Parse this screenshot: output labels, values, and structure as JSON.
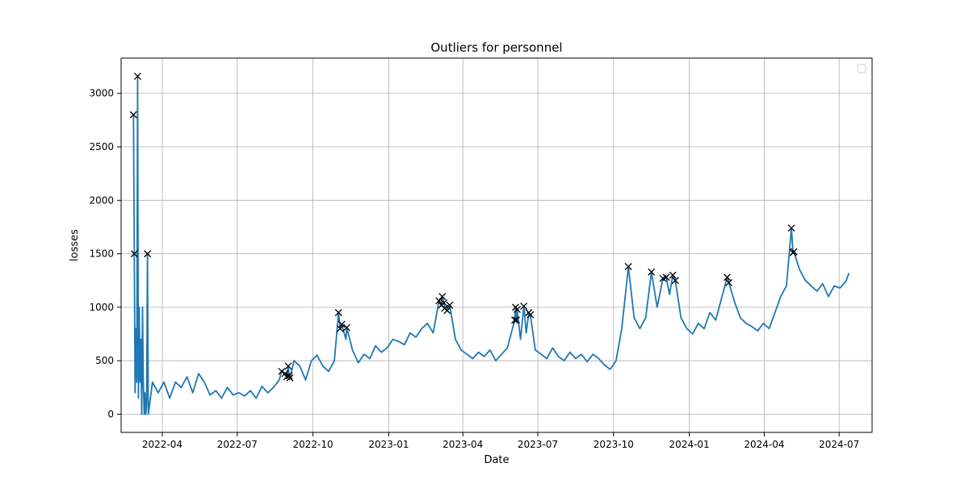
{
  "chart_data": {
    "type": "line",
    "title": "Outliers for personnel",
    "xlabel": "Date",
    "ylabel": "losses",
    "xlim": [
      "2022-02-10",
      "2024-08-10"
    ],
    "ylim": [
      -170,
      3330
    ],
    "x_ticks": [
      "2022-04",
      "2022-07",
      "2022-10",
      "2023-01",
      "2023-04",
      "2023-07",
      "2023-10",
      "2024-01",
      "2024-04",
      "2024-07"
    ],
    "y_ticks": [
      0,
      500,
      1000,
      1500,
      2000,
      2500,
      3000
    ],
    "grid": true,
    "legend_position": "top-right",
    "series": [
      {
        "color": "#1f77b4",
        "points": [
          [
            "2022-02-25",
            2800
          ],
          [
            "2022-02-26",
            1500
          ],
          [
            "2022-02-27",
            200
          ],
          [
            "2022-02-28",
            800
          ],
          [
            "2022-03-01",
            300
          ],
          [
            "2022-03-02",
            3160
          ],
          [
            "2022-03-03",
            150
          ],
          [
            "2022-03-04",
            1000
          ],
          [
            "2022-03-05",
            300
          ],
          [
            "2022-03-06",
            700
          ],
          [
            "2022-03-07",
            0
          ],
          [
            "2022-03-08",
            1000
          ],
          [
            "2022-03-09",
            300
          ],
          [
            "2022-03-10",
            0
          ],
          [
            "2022-03-11",
            200
          ],
          [
            "2022-03-12",
            0
          ],
          [
            "2022-03-13",
            100
          ],
          [
            "2022-03-14",
            1500
          ],
          [
            "2022-03-15",
            0
          ],
          [
            "2022-03-20",
            300
          ],
          [
            "2022-03-27",
            200
          ],
          [
            "2022-04-03",
            300
          ],
          [
            "2022-04-10",
            150
          ],
          [
            "2022-04-17",
            300
          ],
          [
            "2022-04-24",
            250
          ],
          [
            "2022-05-01",
            350
          ],
          [
            "2022-05-08",
            200
          ],
          [
            "2022-05-15",
            380
          ],
          [
            "2022-05-22",
            300
          ],
          [
            "2022-05-29",
            180
          ],
          [
            "2022-06-05",
            220
          ],
          [
            "2022-06-12",
            150
          ],
          [
            "2022-06-19",
            250
          ],
          [
            "2022-06-26",
            180
          ],
          [
            "2022-07-03",
            200
          ],
          [
            "2022-07-10",
            170
          ],
          [
            "2022-07-17",
            220
          ],
          [
            "2022-07-24",
            150
          ],
          [
            "2022-07-31",
            260
          ],
          [
            "2022-08-07",
            200
          ],
          [
            "2022-08-14",
            250
          ],
          [
            "2022-08-21",
            320
          ],
          [
            "2022-08-24",
            400
          ],
          [
            "2022-08-28",
            380
          ],
          [
            "2022-08-30",
            350
          ],
          [
            "2022-09-01",
            450
          ],
          [
            "2022-09-02",
            360
          ],
          [
            "2022-09-03",
            340
          ],
          [
            "2022-09-08",
            500
          ],
          [
            "2022-09-15",
            450
          ],
          [
            "2022-09-22",
            320
          ],
          [
            "2022-09-29",
            500
          ],
          [
            "2022-10-06",
            550
          ],
          [
            "2022-10-13",
            450
          ],
          [
            "2022-10-20",
            400
          ],
          [
            "2022-10-27",
            500
          ],
          [
            "2022-11-01",
            950
          ],
          [
            "2022-11-03",
            800
          ],
          [
            "2022-11-05",
            840
          ],
          [
            "2022-11-10",
            700
          ],
          [
            "2022-11-11",
            810
          ],
          [
            "2022-11-18",
            600
          ],
          [
            "2022-11-25",
            480
          ],
          [
            "2022-12-02",
            560
          ],
          [
            "2022-12-09",
            520
          ],
          [
            "2022-12-16",
            640
          ],
          [
            "2022-12-23",
            580
          ],
          [
            "2022-12-30",
            620
          ],
          [
            "2023-01-06",
            700
          ],
          [
            "2023-01-13",
            680
          ],
          [
            "2023-01-20",
            650
          ],
          [
            "2023-01-27",
            760
          ],
          [
            "2023-02-03",
            720
          ],
          [
            "2023-02-10",
            800
          ],
          [
            "2023-02-17",
            850
          ],
          [
            "2023-02-24",
            760
          ],
          [
            "2023-03-03",
            1060
          ],
          [
            "2023-03-06",
            1020
          ],
          [
            "2023-03-07",
            1100
          ],
          [
            "2023-03-09",
            1040
          ],
          [
            "2023-03-10",
            990
          ],
          [
            "2023-03-13",
            970
          ],
          [
            "2023-03-16",
            1020
          ],
          [
            "2023-03-23",
            700
          ],
          [
            "2023-03-30",
            600
          ],
          [
            "2023-04-06",
            560
          ],
          [
            "2023-04-13",
            520
          ],
          [
            "2023-04-20",
            580
          ],
          [
            "2023-04-27",
            540
          ],
          [
            "2023-05-04",
            600
          ],
          [
            "2023-05-11",
            500
          ],
          [
            "2023-05-18",
            560
          ],
          [
            "2023-05-25",
            620
          ],
          [
            "2023-06-03",
            880
          ],
          [
            "2023-06-04",
            1000
          ],
          [
            "2023-06-05",
            880
          ],
          [
            "2023-06-06",
            980
          ],
          [
            "2023-06-10",
            700
          ],
          [
            "2023-06-14",
            1010
          ],
          [
            "2023-06-17",
            760
          ],
          [
            "2023-06-20",
            950
          ],
          [
            "2023-06-22",
            930
          ],
          [
            "2023-06-28",
            600
          ],
          [
            "2023-07-05",
            560
          ],
          [
            "2023-07-12",
            520
          ],
          [
            "2023-07-19",
            620
          ],
          [
            "2023-07-26",
            540
          ],
          [
            "2023-08-02",
            500
          ],
          [
            "2023-08-09",
            580
          ],
          [
            "2023-08-16",
            520
          ],
          [
            "2023-08-23",
            560
          ],
          [
            "2023-08-30",
            490
          ],
          [
            "2023-09-06",
            560
          ],
          [
            "2023-09-13",
            520
          ],
          [
            "2023-09-20",
            460
          ],
          [
            "2023-09-27",
            420
          ],
          [
            "2023-10-04",
            500
          ],
          [
            "2023-10-11",
            800
          ],
          [
            "2023-10-19",
            1380
          ],
          [
            "2023-10-26",
            900
          ],
          [
            "2023-11-02",
            800
          ],
          [
            "2023-11-09",
            900
          ],
          [
            "2023-11-16",
            1330
          ],
          [
            "2023-11-23",
            1000
          ],
          [
            "2023-11-30",
            1270
          ],
          [
            "2023-12-04",
            1280
          ],
          [
            "2023-12-08",
            1120
          ],
          [
            "2023-12-12",
            1300
          ],
          [
            "2023-12-15",
            1250
          ],
          [
            "2023-12-22",
            900
          ],
          [
            "2023-12-29",
            800
          ],
          [
            "2024-01-05",
            750
          ],
          [
            "2024-01-12",
            850
          ],
          [
            "2024-01-19",
            800
          ],
          [
            "2024-01-26",
            950
          ],
          [
            "2024-02-02",
            880
          ],
          [
            "2024-02-16",
            1280
          ],
          [
            "2024-02-18",
            1230
          ],
          [
            "2024-02-25",
            1050
          ],
          [
            "2024-03-03",
            900
          ],
          [
            "2024-03-10",
            850
          ],
          [
            "2024-03-17",
            820
          ],
          [
            "2024-03-24",
            780
          ],
          [
            "2024-03-31",
            850
          ],
          [
            "2024-04-07",
            800
          ],
          [
            "2024-04-14",
            950
          ],
          [
            "2024-04-21",
            1100
          ],
          [
            "2024-04-28",
            1200
          ],
          [
            "2024-05-04",
            1740
          ],
          [
            "2024-05-06",
            1510
          ],
          [
            "2024-05-07",
            1520
          ],
          [
            "2024-05-14",
            1350
          ],
          [
            "2024-05-21",
            1250
          ],
          [
            "2024-05-28",
            1200
          ],
          [
            "2024-06-04",
            1150
          ],
          [
            "2024-06-11",
            1220
          ],
          [
            "2024-06-18",
            1100
          ],
          [
            "2024-06-25",
            1200
          ],
          [
            "2024-07-02",
            1180
          ],
          [
            "2024-07-09",
            1240
          ],
          [
            "2024-07-13",
            1320
          ]
        ]
      }
    ],
    "outliers": [
      [
        "2022-02-25",
        2800
      ],
      [
        "2022-02-26",
        1500
      ],
      [
        "2022-03-02",
        3160
      ],
      [
        "2022-03-14",
        1500
      ],
      [
        "2022-08-24",
        400
      ],
      [
        "2022-08-28",
        380
      ],
      [
        "2022-08-30",
        350
      ],
      [
        "2022-09-01",
        450
      ],
      [
        "2022-09-02",
        360
      ],
      [
        "2022-09-03",
        340
      ],
      [
        "2022-11-01",
        950
      ],
      [
        "2022-11-03",
        800
      ],
      [
        "2022-11-05",
        840
      ],
      [
        "2022-11-11",
        810
      ],
      [
        "2023-03-03",
        1060
      ],
      [
        "2023-03-06",
        1020
      ],
      [
        "2023-03-07",
        1100
      ],
      [
        "2023-03-09",
        1040
      ],
      [
        "2023-03-10",
        990
      ],
      [
        "2023-03-13",
        970
      ],
      [
        "2023-03-16",
        1020
      ],
      [
        "2023-06-03",
        880
      ],
      [
        "2023-06-04",
        1000
      ],
      [
        "2023-06-05",
        880
      ],
      [
        "2023-06-06",
        980
      ],
      [
        "2023-06-14",
        1010
      ],
      [
        "2023-06-20",
        950
      ],
      [
        "2023-06-22",
        930
      ],
      [
        "2023-10-19",
        1380
      ],
      [
        "2023-11-16",
        1330
      ],
      [
        "2023-11-30",
        1270
      ],
      [
        "2023-12-04",
        1280
      ],
      [
        "2023-12-12",
        1300
      ],
      [
        "2023-12-15",
        1250
      ],
      [
        "2024-02-16",
        1280
      ],
      [
        "2024-02-18",
        1230
      ],
      [
        "2024-05-04",
        1740
      ],
      [
        "2024-05-06",
        1510
      ],
      [
        "2024-05-07",
        1520
      ]
    ]
  }
}
